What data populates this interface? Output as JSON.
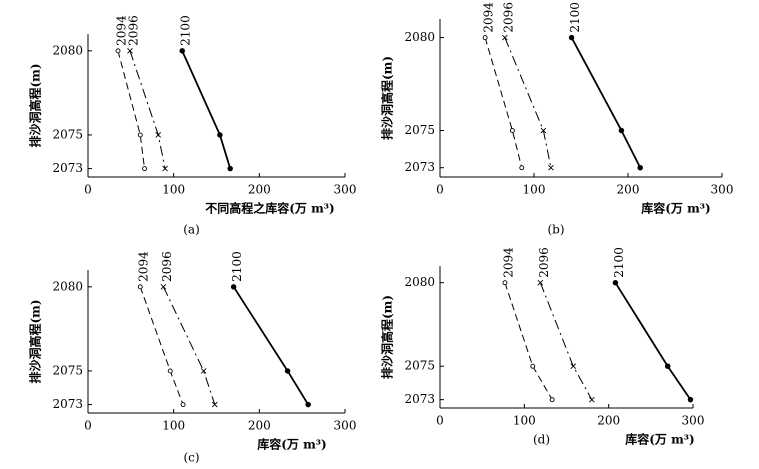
{
  "chart_data": [
    {
      "type": "line",
      "y_label": "排沙洞高程(m)",
      "x_label": "不同高程之库容(万 m³)",
      "caption": "(a)",
      "xlim": [
        0,
        300
      ],
      "xticks": [
        0,
        100,
        200,
        300
      ],
      "ylim": [
        2072.5,
        2081
      ],
      "yticks": [
        2073,
        2075,
        2080
      ],
      "series": [
        {
          "name": "2094",
          "color": "#000000",
          "style": "dashed",
          "marker": "open-circle",
          "x": [
            35,
            61,
            66
          ],
          "values": [
            2080,
            2075,
            2073
          ]
        },
        {
          "name": "2096",
          "color": "#000000",
          "style": "dashdot",
          "marker": "cross",
          "x": [
            49,
            82,
            90
          ],
          "values": [
            2080,
            2075,
            2073
          ]
        },
        {
          "name": "2100",
          "color": "#000000",
          "style": "solid",
          "marker": "dot",
          "x": [
            110,
            154,
            166
          ],
          "values": [
            2080,
            2075,
            2073
          ]
        }
      ]
    },
    {
      "type": "line",
      "y_label": "排沙洞高程(m)",
      "x_label": "库容(万 m³)",
      "caption": "(b)",
      "xlim": [
        0,
        300
      ],
      "xticks": [
        0,
        100,
        200,
        300
      ],
      "ylim": [
        2072.5,
        2081
      ],
      "yticks": [
        2073,
        2075,
        2080
      ],
      "series": [
        {
          "name": "2094",
          "color": "#000000",
          "style": "dashed",
          "marker": "open-circle",
          "x": [
            48,
            77,
            87
          ],
          "values": [
            2080,
            2075,
            2073
          ]
        },
        {
          "name": "2096",
          "color": "#000000",
          "style": "dashdot",
          "marker": "cross",
          "x": [
            69,
            110,
            118
          ],
          "values": [
            2080,
            2075,
            2073
          ]
        },
        {
          "name": "2100",
          "color": "#000000",
          "style": "solid",
          "marker": "dot",
          "x": [
            140,
            193,
            213
          ],
          "values": [
            2080,
            2075,
            2073
          ]
        }
      ]
    },
    {
      "type": "line",
      "y_label": "排沙洞高程(m)",
      "x_label": "库容(万 m³)",
      "caption": "(c)",
      "xlim": [
        0,
        300
      ],
      "xticks": [
        0,
        100,
        200,
        300
      ],
      "ylim": [
        2072.5,
        2081
      ],
      "yticks": [
        2073,
        2075,
        2080
      ],
      "series": [
        {
          "name": "2094",
          "color": "#000000",
          "style": "dashed",
          "marker": "open-circle",
          "x": [
            61,
            96,
            111
          ],
          "values": [
            2080,
            2075,
            2073
          ]
        },
        {
          "name": "2096",
          "color": "#000000",
          "style": "dashdot",
          "marker": "cross",
          "x": [
            88,
            135,
            148
          ],
          "values": [
            2080,
            2075,
            2073
          ]
        },
        {
          "name": "2100",
          "color": "#000000",
          "style": "solid",
          "marker": "dot",
          "x": [
            170,
            233,
            257
          ],
          "values": [
            2080,
            2075,
            2073
          ]
        }
      ]
    },
    {
      "type": "line",
      "y_label": "排沙洞高程(m)",
      "x_label": "库容(万 m³)",
      "caption": "(d)",
      "xlim": [
        0,
        300
      ],
      "xticks": [
        0,
        100,
        200,
        300
      ],
      "ylim": [
        2072.5,
        2081
      ],
      "yticks": [
        2073,
        2075,
        2080
      ],
      "series": [
        {
          "name": "2094",
          "color": "#000000",
          "style": "dashed",
          "marker": "open-circle",
          "x": [
            77,
            110,
            133
          ],
          "values": [
            2080,
            2075,
            2073
          ]
        },
        {
          "name": "2096",
          "color": "#000000",
          "style": "dashdot",
          "marker": "cross",
          "x": [
            119,
            158,
            180
          ],
          "values": [
            2080,
            2075,
            2073
          ]
        },
        {
          "name": "2100",
          "color": "#000000",
          "style": "solid",
          "marker": "dot",
          "x": [
            208,
            270,
            297
          ],
          "values": [
            2080,
            2075,
            2073
          ]
        }
      ]
    }
  ]
}
